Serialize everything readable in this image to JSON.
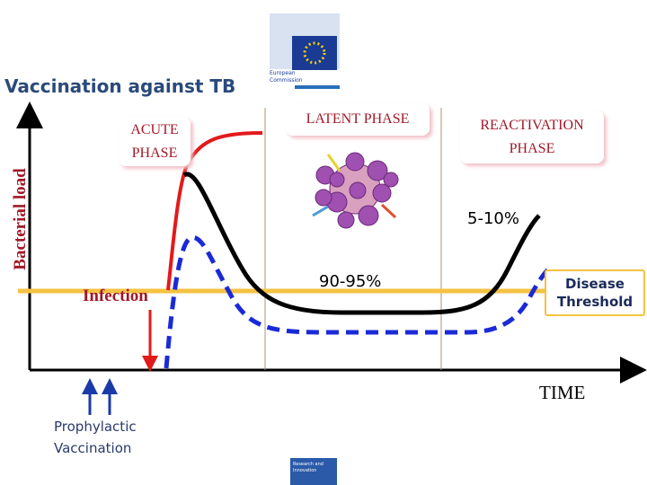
{
  "header": {
    "title": "Vaccination against TB",
    "logo": "European Commission"
  },
  "axes": {
    "y_label": "Bacterial load",
    "x_label": "TIME"
  },
  "phases": {
    "acute": "ACUTE PHASE",
    "latent": "LATENT PHASE",
    "reactivation": "REACTIVATION PHASE"
  },
  "annotations": {
    "reactivation_rate": "5-10%",
    "latent_rate": "90-95%",
    "infection": "Infection",
    "threshold": "Disease Threshold",
    "vaccination": "Prophylactic Vaccination"
  },
  "footer": {
    "logo": "Research and Innovation"
  }
}
